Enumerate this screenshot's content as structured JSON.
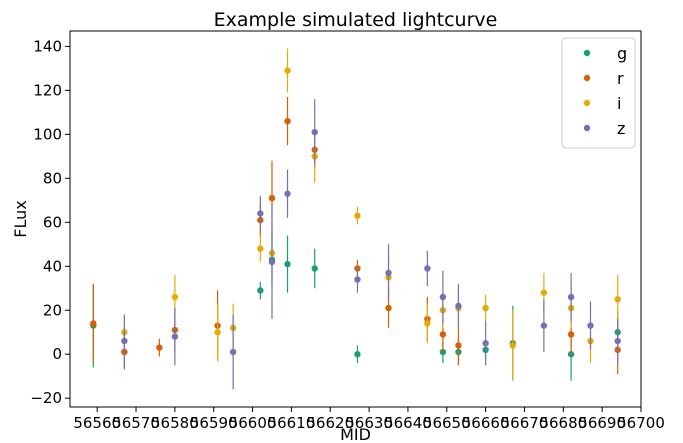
{
  "chart_data": {
    "type": "scatter",
    "title": "Example simulated lightcurve",
    "xlabel": "MID",
    "ylabel": "FLux",
    "xlim": [
      56553,
      56700
    ],
    "ylim": [
      -24,
      147
    ],
    "xticks": [
      56560,
      56570,
      56580,
      56590,
      56600,
      56610,
      56620,
      56630,
      56640,
      56650,
      56660,
      56670,
      56680,
      56690,
      56700
    ],
    "yticks": [
      -20,
      0,
      20,
      40,
      60,
      80,
      100,
      120,
      140
    ],
    "ytick_labels": [
      "−20",
      "0",
      "20",
      "40",
      "60",
      "80",
      "100",
      "120",
      "140"
    ],
    "legend_position": "top-right",
    "grid": false,
    "error_bars": true,
    "series": [
      {
        "name": "g",
        "color": "#1b9e77",
        "points": [
          {
            "x": 56559,
            "y": 13,
            "err": 19
          },
          {
            "x": 56567,
            "y": 1,
            "err": 5
          },
          {
            "x": 56602,
            "y": 29,
            "err": 4
          },
          {
            "x": 56605,
            "y": 43,
            "err": 12
          },
          {
            "x": 56609,
            "y": 41,
            "err": 13
          },
          {
            "x": 56616,
            "y": 39,
            "err": 9
          },
          {
            "x": 56627,
            "y": 0,
            "err": 4
          },
          {
            "x": 56649,
            "y": 1,
            "err": 5
          },
          {
            "x": 56653,
            "y": 1,
            "err": 6
          },
          {
            "x": 56660,
            "y": 2,
            "err": 4
          },
          {
            "x": 56667,
            "y": 5,
            "err": 17
          },
          {
            "x": 56682,
            "y": 0,
            "err": 12
          },
          {
            "x": 56694,
            "y": 10,
            "err": 10
          }
        ]
      },
      {
        "name": "r",
        "color": "#d95f02",
        "points": [
          {
            "x": 56559,
            "y": 14,
            "err": 18
          },
          {
            "x": 56567,
            "y": 1,
            "err": 8
          },
          {
            "x": 56576,
            "y": 3,
            "err": 4
          },
          {
            "x": 56580,
            "y": 11,
            "err": 10
          },
          {
            "x": 56591,
            "y": 13,
            "err": 16
          },
          {
            "x": 56602,
            "y": 61,
            "err": 8
          },
          {
            "x": 56605,
            "y": 71,
            "err": 17
          },
          {
            "x": 56609,
            "y": 106,
            "err": 11
          },
          {
            "x": 56616,
            "y": 93,
            "err": 9
          },
          {
            "x": 56627,
            "y": 39,
            "err": 4
          },
          {
            "x": 56635,
            "y": 21,
            "err": 9
          },
          {
            "x": 56645,
            "y": 16,
            "err": 10
          },
          {
            "x": 56649,
            "y": 9,
            "err": 8
          },
          {
            "x": 56653,
            "y": 4,
            "err": 9
          },
          {
            "x": 56682,
            "y": 9,
            "err": 9
          },
          {
            "x": 56694,
            "y": 2,
            "err": 11
          }
        ]
      },
      {
        "name": "i",
        "color": "#e6ab02",
        "points": [
          {
            "x": 56567,
            "y": 10,
            "err": 8
          },
          {
            "x": 56580,
            "y": 26,
            "err": 10
          },
          {
            "x": 56591,
            "y": 10,
            "err": 13
          },
          {
            "x": 56595,
            "y": 12,
            "err": 11
          },
          {
            "x": 56602,
            "y": 48,
            "err": 6
          },
          {
            "x": 56605,
            "y": 46,
            "err": 10
          },
          {
            "x": 56609,
            "y": 129,
            "err": 10
          },
          {
            "x": 56616,
            "y": 90,
            "err": 12
          },
          {
            "x": 56627,
            "y": 63,
            "err": 4
          },
          {
            "x": 56635,
            "y": 35,
            "err": 10
          },
          {
            "x": 56645,
            "y": 14,
            "err": 9
          },
          {
            "x": 56649,
            "y": 20,
            "err": 8
          },
          {
            "x": 56653,
            "y": 21,
            "err": 8
          },
          {
            "x": 56660,
            "y": 21,
            "err": 6
          },
          {
            "x": 56667,
            "y": 4,
            "err": 16
          },
          {
            "x": 56675,
            "y": 28,
            "err": 9
          },
          {
            "x": 56682,
            "y": 21,
            "err": 9
          },
          {
            "x": 56687,
            "y": 6,
            "err": 10
          },
          {
            "x": 56694,
            "y": 25,
            "err": 11
          }
        ]
      },
      {
        "name": "z",
        "color": "#7570b3",
        "points": [
          {
            "x": 56567,
            "y": 6,
            "err": 12
          },
          {
            "x": 56580,
            "y": 8,
            "err": 13
          },
          {
            "x": 56595,
            "y": 1,
            "err": 17
          },
          {
            "x": 56602,
            "y": 64,
            "err": 8
          },
          {
            "x": 56605,
            "y": 42,
            "err": 26
          },
          {
            "x": 56609,
            "y": 73,
            "err": 11
          },
          {
            "x": 56616,
            "y": 101,
            "err": 15
          },
          {
            "x": 56627,
            "y": 34,
            "err": 6
          },
          {
            "x": 56635,
            "y": 37,
            "err": 13
          },
          {
            "x": 56645,
            "y": 39,
            "err": 8
          },
          {
            "x": 56649,
            "y": 26,
            "err": 12
          },
          {
            "x": 56653,
            "y": 22,
            "err": 10
          },
          {
            "x": 56660,
            "y": 5,
            "err": 10
          },
          {
            "x": 56675,
            "y": 13,
            "err": 12
          },
          {
            "x": 56682,
            "y": 26,
            "err": 11
          },
          {
            "x": 56687,
            "y": 13,
            "err": 11
          },
          {
            "x": 56694,
            "y": 6,
            "err": 10
          }
        ]
      }
    ]
  }
}
